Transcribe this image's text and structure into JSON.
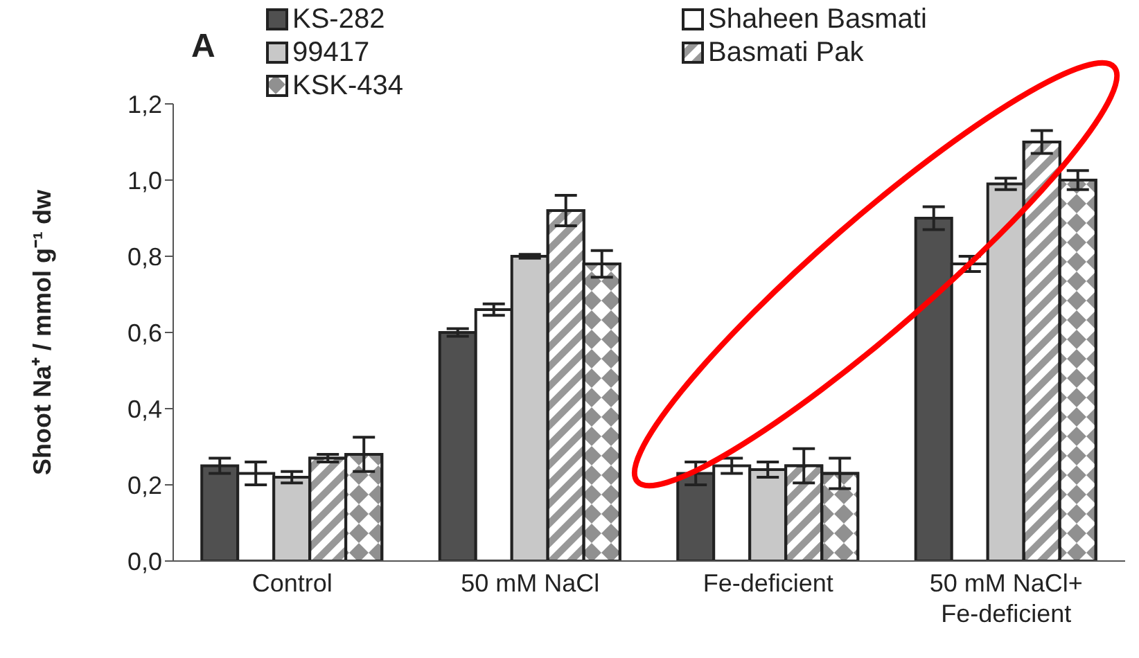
{
  "chart_data": {
    "type": "bar",
    "title": "A",
    "ylabel": "Shoot Na⁺ / mmol g⁻¹ dw",
    "categories": [
      "Control",
      "50 mM NaCl",
      "Fe-deficient",
      "50 mM NaCl+ Fe-deficient"
    ],
    "series": [
      {
        "name": "KS-282",
        "color": "#505050",
        "values": [
          0.25,
          0.6,
          0.23,
          0.9
        ],
        "errors": [
          0.02,
          0.01,
          0.03,
          0.03
        ]
      },
      {
        "name": "Shaheen Basmati",
        "color": "#ffffff",
        "values": [
          0.23,
          0.66,
          0.25,
          0.78
        ],
        "errors": [
          0.03,
          0.015,
          0.02,
          0.02
        ]
      },
      {
        "name": "99417",
        "color": "#c8c8c8",
        "values": [
          0.22,
          0.8,
          0.24,
          0.99
        ],
        "errors": [
          0.015,
          0.005,
          0.02,
          0.015
        ]
      },
      {
        "name": "Basmati Pak",
        "color": "#989898",
        "values": [
          0.27,
          0.92,
          0.25,
          1.1
        ],
        "errors": [
          0.01,
          0.04,
          0.045,
          0.03
        ]
      },
      {
        "name": "KSK-434",
        "color": "#909090",
        "values": [
          0.28,
          0.78,
          0.23,
          1.0
        ],
        "errors": [
          0.045,
          0.035,
          0.04,
          0.025
        ]
      }
    ],
    "ylim": [
      0,
      1.2
    ],
    "yticks": [
      {
        "value": 0,
        "label": "0,0"
      },
      {
        "value": 0.2,
        "label": "0,2"
      },
      {
        "value": 0.4,
        "label": "0,4"
      },
      {
        "value": 0.6,
        "label": "0,6"
      },
      {
        "value": 0.8,
        "label": "0,8"
      },
      {
        "value": 1.0,
        "label": "1,0"
      },
      {
        "value": 1.2,
        "label": "1,2"
      }
    ],
    "grid": false,
    "legend": "top"
  }
}
